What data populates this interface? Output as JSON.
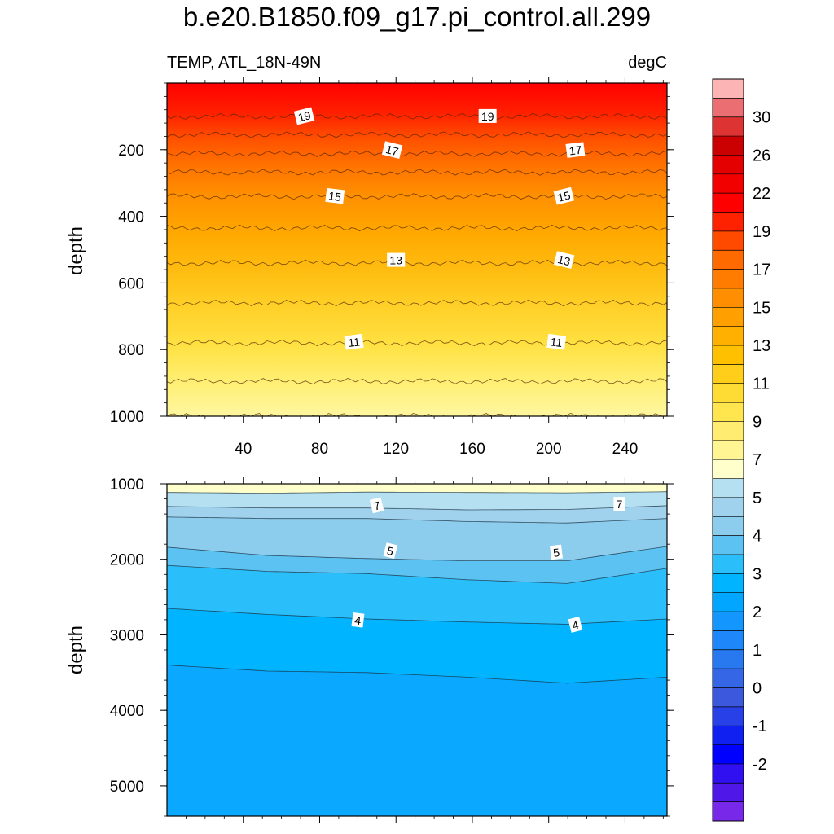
{
  "chart_data": [
    {
      "type": "contour",
      "title": "b.e20.B1850.f09_g17.pi_control.all.299",
      "subtitle_left": "TEMP, ATL_18N-49N",
      "subtitle_right": "degC",
      "ylabel": "depth",
      "xlabel": "",
      "xlim": [
        0,
        262
      ],
      "ylim": [
        1000,
        0
      ],
      "x_ticks": [
        40,
        80,
        120,
        160,
        200,
        240
      ],
      "y_ticks": [
        200,
        400,
        600,
        800,
        1000
      ],
      "contour_lines": [
        {
          "level": 19,
          "depth": 100
        },
        {
          "level": 18,
          "depth": 155
        },
        {
          "level": 17,
          "depth": 212
        },
        {
          "level": 16,
          "depth": 268
        },
        {
          "level": 15,
          "depth": 340
        },
        {
          "level": 14,
          "depth": 435
        },
        {
          "level": 13,
          "depth": 540
        },
        {
          "level": 12,
          "depth": 660
        },
        {
          "level": 11,
          "depth": 780
        },
        {
          "level": 10,
          "depth": 895
        },
        {
          "level": 9,
          "depth": 1000
        }
      ],
      "contour_labels": [
        {
          "text": "19",
          "x": 72,
          "depth": 100
        },
        {
          "text": "19",
          "x": 168,
          "depth": 100
        },
        {
          "text": "17",
          "x": 118,
          "depth": 202
        },
        {
          "text": "17",
          "x": 214,
          "depth": 202
        },
        {
          "text": "15",
          "x": 88,
          "depth": 340
        },
        {
          "text": "15",
          "x": 208,
          "depth": 340
        },
        {
          "text": "13",
          "x": 120,
          "depth": 532
        },
        {
          "text": "13",
          "x": 208,
          "depth": 532
        },
        {
          "text": "11",
          "x": 98,
          "depth": 778
        },
        {
          "text": "11",
          "x": 204,
          "depth": 778
        }
      ]
    },
    {
      "type": "contour",
      "ylabel": "depth",
      "xlabel": "",
      "xlim": [
        0,
        262
      ],
      "ylim": [
        5400,
        1000
      ],
      "y_ticks": [
        1000,
        2000,
        3000,
        4000,
        5000
      ],
      "contour_lines": [
        {
          "level": 8,
          "depth": [
            1115,
            1125,
            1110,
            1115,
            1120,
            1105
          ]
        },
        {
          "level": 7,
          "depth": [
            1300,
            1320,
            1320,
            1345,
            1340,
            1290
          ]
        },
        {
          "level": 6,
          "depth": [
            1440,
            1460,
            1460,
            1500,
            1520,
            1460
          ]
        },
        {
          "level": 5,
          "depth": [
            1840,
            1950,
            1990,
            2020,
            2020,
            1830
          ]
        },
        {
          "level": 4.5,
          "depth": [
            2080,
            2160,
            2190,
            2270,
            2320,
            2120
          ]
        },
        {
          "level": 4,
          "depth": [
            2650,
            2730,
            2790,
            2830,
            2860,
            2790
          ]
        },
        {
          "level": 3.5,
          "depth": [
            3400,
            3480,
            3500,
            3560,
            3640,
            3560
          ]
        }
      ],
      "contour_labels": [
        {
          "text": "7",
          "x": 110,
          "depth": 1290
        },
        {
          "text": "7",
          "x": 237,
          "depth": 1270
        },
        {
          "text": "5",
          "x": 117,
          "depth": 1890
        },
        {
          "text": "5",
          "x": 204,
          "depth": 1910
        },
        {
          "text": "4",
          "x": 100,
          "depth": 2810
        },
        {
          "text": "4",
          "x": 214,
          "depth": 2870
        }
      ]
    }
  ],
  "colorbar": {
    "labels": [
      "30",
      "26",
      "22",
      "19",
      "17",
      "15",
      "13",
      "11",
      "9",
      "7",
      "5",
      "4",
      "3",
      "2",
      "1",
      "0",
      "-1",
      "-2"
    ],
    "colors": [
      "#FDB4B4",
      "#EB6F72",
      "#DD3333",
      "#CB0000",
      "#E40000",
      "#F20000",
      "#FF0000",
      "#FF2200",
      "#FF4A00",
      "#FF6A00",
      "#FF7C00",
      "#FF8E00",
      "#FFA000",
      "#FFB000",
      "#FFC000",
      "#FFCE1A",
      "#FFDC34",
      "#FFE54E",
      "#FFEC70",
      "#FFF592",
      "#FFFFCC",
      "#B4E0F2",
      "#A0D2EE",
      "#8CCCEC",
      "#5CC2F2",
      "#2ABEFA",
      "#00B4FF",
      "#00A6FF",
      "#1496FF",
      "#1E88FA",
      "#2878F0",
      "#3466E6",
      "#3C58DC",
      "#2840E8",
      "#1020F0",
      "#0000FF",
      "#3010F0",
      "#5018E8",
      "#7828E8"
    ]
  }
}
